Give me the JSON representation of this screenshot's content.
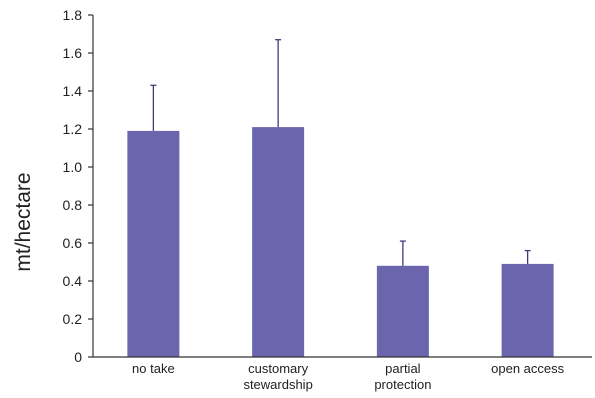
{
  "chart_data": {
    "type": "bar",
    "title": "",
    "xlabel": "",
    "ylabel": "mt/hectare",
    "ylim": [
      0,
      1.8
    ],
    "yticks": [
      "0",
      "0.2",
      "0.4",
      "0.6",
      "0.8",
      "1.0",
      "1.2",
      "1.4",
      "1.6",
      "1.8"
    ],
    "ytick_values": [
      0,
      0.2,
      0.4,
      0.6,
      0.8,
      1.0,
      1.2,
      1.4,
      1.6,
      1.8
    ],
    "categories": [
      {
        "line1": "no take",
        "line2": ""
      },
      {
        "line1": "customary",
        "line2": "stewardship"
      },
      {
        "line1": "partial",
        "line2": "protection"
      },
      {
        "line1": "open access",
        "line2": ""
      }
    ],
    "values": [
      1.19,
      1.21,
      0.48,
      0.49
    ],
    "error_upper": [
      1.43,
      1.67,
      0.61,
      0.56
    ],
    "bar_color": "#6a65ad",
    "grid": false,
    "legend": "none"
  }
}
